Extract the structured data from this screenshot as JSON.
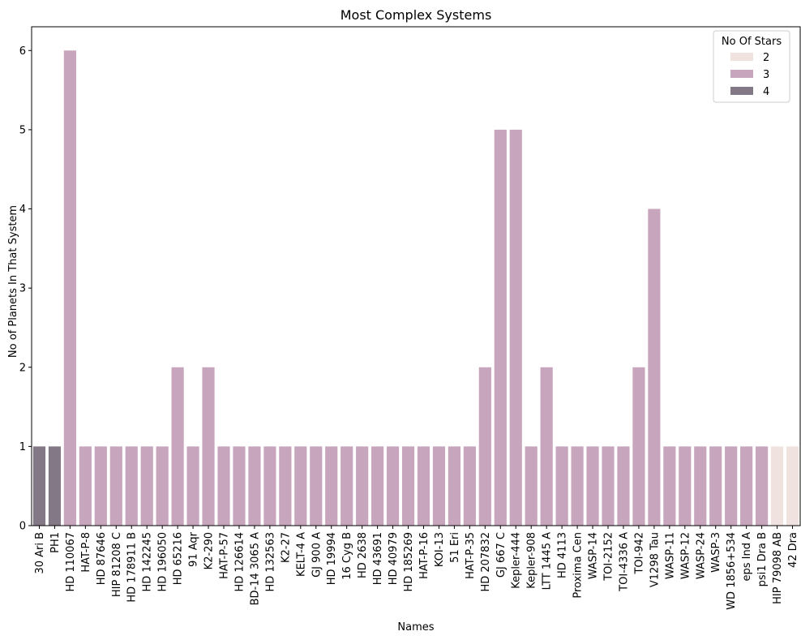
{
  "chart_data": {
    "type": "bar",
    "title": "Most Complex Systems",
    "xlabel": "Names",
    "ylabel": "No of Planets In That System",
    "ylim": [
      0,
      6.3
    ],
    "yticks": [
      0,
      1,
      2,
      3,
      4,
      5,
      6
    ],
    "grid": false,
    "legend": {
      "title": "No Of Stars",
      "placement": "top-right",
      "entries": [
        {
          "label": "2",
          "color": "#efe2df"
        },
        {
          "label": "3",
          "color": "#c7a5bc"
        },
        {
          "label": "4",
          "color": "#837986"
        }
      ]
    },
    "categories": [
      "30 Ari B",
      "PH1",
      "HD 110067",
      "HAT-P-8",
      "HD 87646",
      "HIP 81208 C",
      "HD 178911 B",
      "HD 142245",
      "HD 196050",
      "HD 65216",
      "91 Aqr",
      "K2-290",
      "HAT-P-57",
      "HD 126614",
      "BD-14 3065 A",
      "HD 132563",
      "K2-27",
      "KELT-4 A",
      "GJ 900 A",
      "HD 19994",
      "16 Cyg B",
      "HD 2638",
      "HD 43691",
      "HD 40979",
      "HD 185269",
      "HAT-P-16",
      "KOI-13",
      "51 Eri",
      "HAT-P-35",
      "HD 207832",
      "GJ 667 C",
      "Kepler-444",
      "Kepler-908",
      "LTT 1445 A",
      "HD 4113",
      "Proxima Cen",
      "WASP-14",
      "TOI-2152",
      "TOI-4336 A",
      "TOI-942",
      "V1298 Tau",
      "WASP-11",
      "WASP-12",
      "WASP-24",
      "WASP-3",
      "WD 1856+534",
      "eps Ind A",
      "psi1 Dra B",
      "HIP 79098 AB",
      "42 Dra"
    ],
    "values": [
      1,
      1,
      6,
      1,
      1,
      1,
      1,
      1,
      1,
      2,
      1,
      2,
      1,
      1,
      1,
      1,
      1,
      1,
      1,
      1,
      1,
      1,
      1,
      1,
      1,
      1,
      1,
      1,
      1,
      2,
      5,
      5,
      1,
      2,
      1,
      1,
      1,
      1,
      1,
      2,
      4,
      1,
      1,
      1,
      1,
      1,
      1,
      1,
      1,
      1
    ],
    "stars": [
      4,
      4,
      3,
      3,
      3,
      3,
      3,
      3,
      3,
      3,
      3,
      3,
      3,
      3,
      3,
      3,
      3,
      3,
      3,
      3,
      3,
      3,
      3,
      3,
      3,
      3,
      3,
      3,
      3,
      3,
      3,
      3,
      3,
      3,
      3,
      3,
      3,
      3,
      3,
      3,
      3,
      3,
      3,
      3,
      3,
      3,
      3,
      3,
      2,
      2
    ]
  }
}
